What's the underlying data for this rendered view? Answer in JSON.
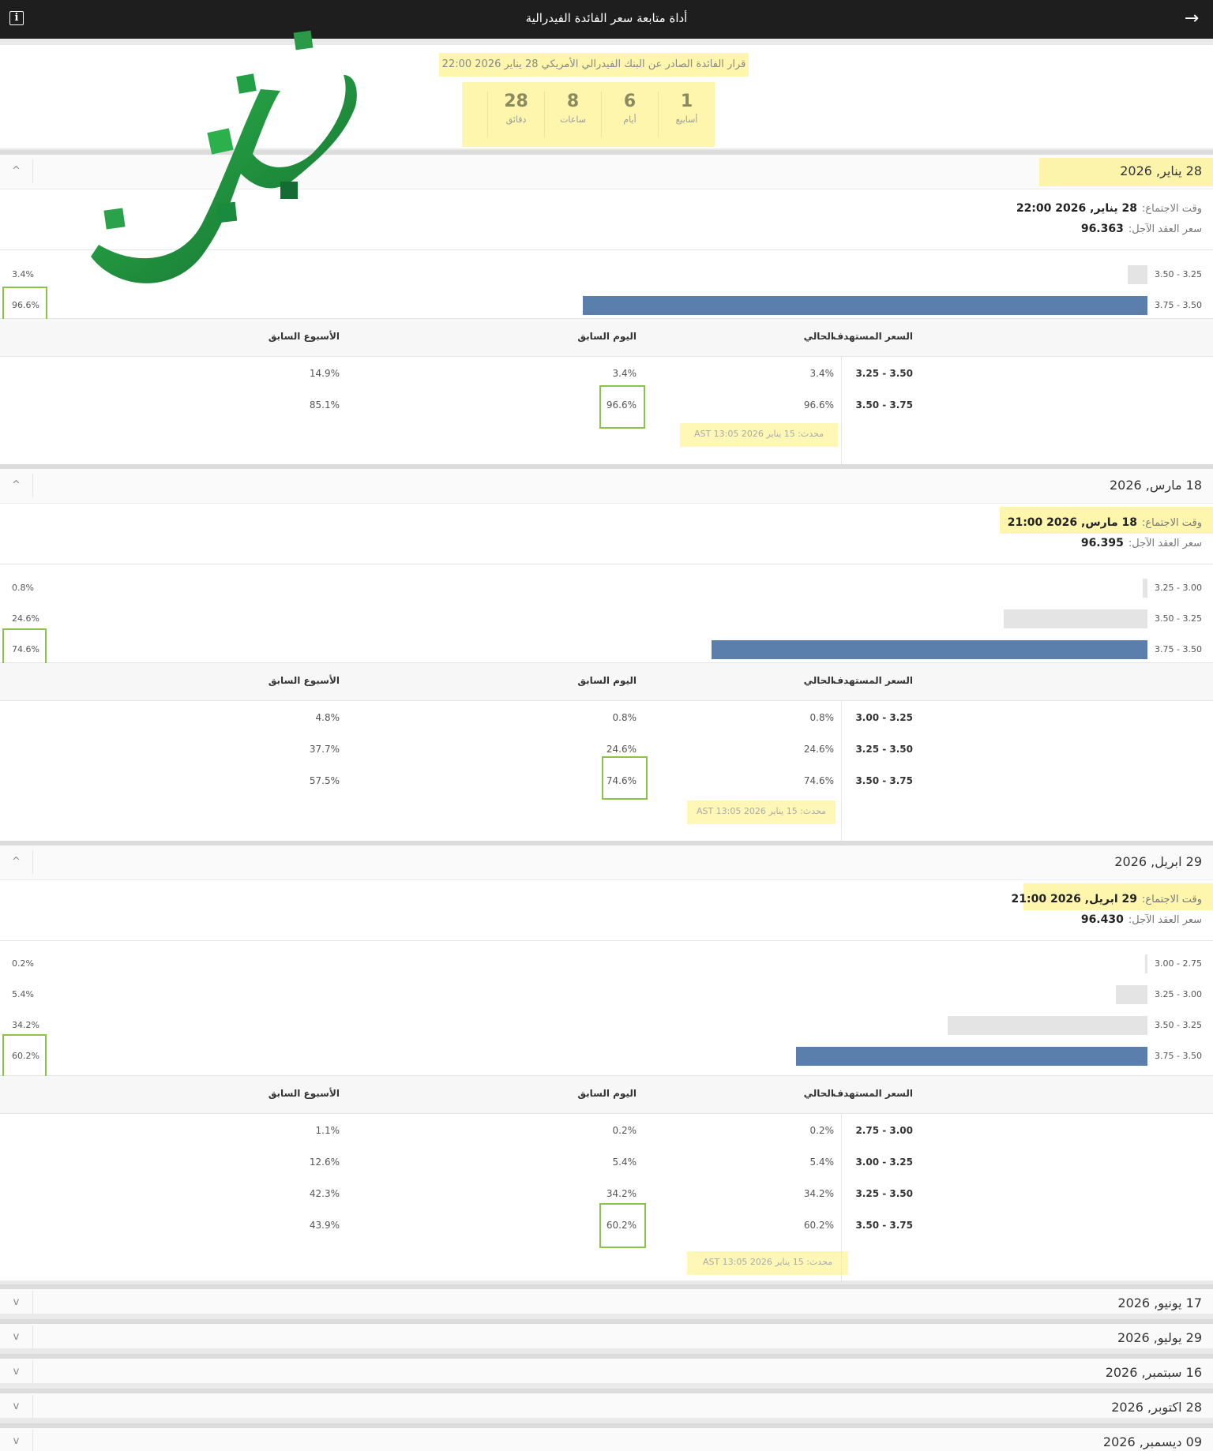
{
  "topbar": {
    "title": "أداة متابعة سعر الفائدة الفيدرالية",
    "back_icon": "arrow-right-icon",
    "info_icon": "info-icon",
    "info_glyph": "i"
  },
  "header": {
    "decision": "قرار الفائدة الصادر عن البنك الفيدرالي الأمريكي 28 يناير 2026 22:00",
    "countdown": [
      {
        "num": "1",
        "label": "أسابيع"
      },
      {
        "num": "6",
        "label": "أيام"
      },
      {
        "num": "8",
        "label": "ساعات"
      },
      {
        "num": "28",
        "label": "دقائق"
      }
    ]
  },
  "labels": {
    "meeting_time": "وقت الاجتماع:",
    "futures_price": "سعر العقد الآجل:",
    "col_target": "السعر المستهدف",
    "col_current": "الحالي",
    "col_prev_day": "اليوم السابق",
    "col_prev_week": "الأسبوع السابق",
    "collapse_glyph": "^",
    "expand_glyph": "v"
  },
  "sections": [
    {
      "date": "28 يناير, 2026",
      "meeting_time": "28 يناير, 2026 22:00",
      "futures": "96.363",
      "bars": [
        {
          "range": "3.50 - 3.25",
          "pct": "3.4%",
          "value": 3.4,
          "current": false
        },
        {
          "range": "3.75 - 3.50",
          "pct": "96.6%",
          "value": 96.6,
          "current": true
        }
      ],
      "rows": [
        {
          "range": "3.50 - 3.25",
          "cur": "3.4%",
          "day": "3.4%",
          "week": "14.9%"
        },
        {
          "range": "3.75 - 3.50",
          "cur": "96.6%",
          "day": "96.6%",
          "week": "85.1%"
        }
      ],
      "updated": "محدث: 15 يناير 2026 13:05 AST"
    },
    {
      "date": "18 مارس, 2026",
      "meeting_time": "18 مارس, 2026 21:00",
      "futures": "96.395",
      "bars": [
        {
          "range": "3.25 - 3.00",
          "pct": "0.8%",
          "value": 0.8,
          "current": false
        },
        {
          "range": "3.50 - 3.25",
          "pct": "24.6%",
          "value": 24.6,
          "current": false
        },
        {
          "range": "3.75 - 3.50",
          "pct": "74.6%",
          "value": 74.6,
          "current": true
        }
      ],
      "rows": [
        {
          "range": "3.25 - 3.00",
          "cur": "0.8%",
          "day": "0.8%",
          "week": "4.8%"
        },
        {
          "range": "3.50 - 3.25",
          "cur": "24.6%",
          "day": "24.6%",
          "week": "37.7%"
        },
        {
          "range": "3.75 - 3.50",
          "cur": "74.6%",
          "day": "74.6%",
          "week": "57.5%"
        }
      ],
      "updated": "محدث: 15 يناير 2026 13:05 AST"
    },
    {
      "date": "29 ابريل, 2026",
      "meeting_time": "29 ابريل, 2026 21:00",
      "futures": "96.430",
      "bars": [
        {
          "range": "3.00 - 2.75",
          "pct": "0.2%",
          "value": 0.2,
          "current": false
        },
        {
          "range": "3.25 - 3.00",
          "pct": "5.4%",
          "value": 5.4,
          "current": false
        },
        {
          "range": "3.50 - 3.25",
          "pct": "34.2%",
          "value": 34.2,
          "current": false
        },
        {
          "range": "3.75 - 3.50",
          "pct": "60.2%",
          "value": 60.2,
          "current": true
        }
      ],
      "rows": [
        {
          "range": "3.00 - 2.75",
          "cur": "0.2%",
          "day": "0.2%",
          "week": "1.1%"
        },
        {
          "range": "3.25 - 3.00",
          "cur": "5.4%",
          "day": "5.4%",
          "week": "12.6%"
        },
        {
          "range": "3.50 - 3.25",
          "cur": "34.2%",
          "day": "34.2%",
          "week": "42.3%"
        },
        {
          "range": "3.75 - 3.50",
          "cur": "60.2%",
          "day": "60.2%",
          "week": "43.9%"
        }
      ],
      "updated": "محدث: 15 يناير 2026 13:05 AST"
    }
  ],
  "collapsed": [
    {
      "date": "17 يونيو, 2026"
    },
    {
      "date": "29 يوليو, 2026"
    },
    {
      "date": "16 سبتمبر, 2026"
    },
    {
      "date": "28 اكتوبر, 2026"
    },
    {
      "date": "09 ديسمبر, 2026"
    }
  ],
  "colors": {
    "bar_current": "#5a7fad",
    "bar_other": "#e4e4e4",
    "highlight": "#fff078",
    "box": "#8bc34a",
    "logo": "#1a8a3a"
  }
}
